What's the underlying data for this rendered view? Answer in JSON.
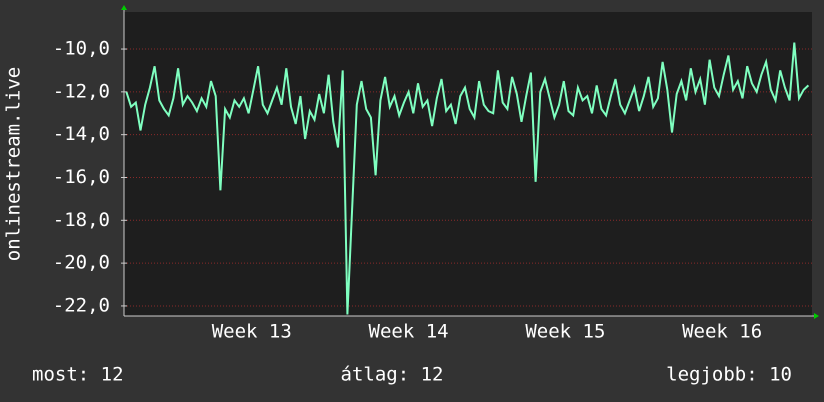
{
  "chart_data": {
    "type": "line",
    "y_label": "onlinestream.live",
    "x": [
      12.2,
      12.23,
      12.26,
      12.29,
      12.32,
      12.35,
      12.38,
      12.41,
      12.44,
      12.47,
      12.5,
      12.53,
      12.56,
      12.59,
      12.62,
      12.65,
      12.68,
      12.71,
      12.74,
      12.77,
      12.8,
      12.83,
      12.86,
      12.89,
      12.92,
      12.95,
      12.98,
      13.01,
      13.04,
      13.07,
      13.1,
      13.13,
      13.16,
      13.19,
      13.22,
      13.25,
      13.28,
      13.31,
      13.34,
      13.37,
      13.4,
      13.43,
      13.46,
      13.49,
      13.52,
      13.55,
      13.58,
      13.61,
      13.64,
      13.67,
      13.7,
      13.73,
      13.76,
      13.79,
      13.82,
      13.85,
      13.88,
      13.91,
      13.94,
      13.97,
      14.0,
      14.03,
      14.06,
      14.09,
      14.12,
      14.15,
      14.18,
      14.21,
      14.24,
      14.27,
      14.3,
      14.33,
      14.36,
      14.39,
      14.42,
      14.45,
      14.48,
      14.51,
      14.54,
      14.57,
      14.6,
      14.63,
      14.66,
      14.69,
      14.72,
      14.75,
      14.78,
      14.81,
      14.84,
      14.87,
      14.9,
      14.93,
      14.96,
      14.99,
      15.02,
      15.05,
      15.08,
      15.11,
      15.14,
      15.17,
      15.2,
      15.23,
      15.26,
      15.29,
      15.32,
      15.35,
      15.38,
      15.41,
      15.44,
      15.47,
      15.5,
      15.53,
      15.56,
      15.59,
      15.62,
      15.65,
      15.68,
      15.71,
      15.74,
      15.77,
      15.8,
      15.83,
      15.86,
      15.89,
      15.92,
      15.95,
      15.98,
      16.01,
      16.04,
      16.07,
      16.1,
      16.13,
      16.16,
      16.19,
      16.22,
      16.25,
      16.28,
      16.31,
      16.34,
      16.37,
      16.4,
      16.43,
      16.46,
      16.49,
      16.52,
      16.55
    ],
    "series": [
      {
        "color": "#7fffc0",
        "values": [
          -12.0,
          -12.7,
          -12.5,
          -13.8,
          -12.6,
          -11.8,
          -10.8,
          -12.4,
          -12.8,
          -13.1,
          -12.3,
          -10.9,
          -12.6,
          -12.2,
          -12.5,
          -12.9,
          -12.3,
          -12.7,
          -11.5,
          -12.2,
          -16.6,
          -12.8,
          -13.2,
          -12.4,
          -12.7,
          -12.3,
          -13.0,
          -11.9,
          -10.8,
          -12.6,
          -13.0,
          -12.4,
          -11.8,
          -12.6,
          -10.9,
          -12.7,
          -13.5,
          -12.2,
          -14.2,
          -12.9,
          -13.3,
          -12.1,
          -13.0,
          -11.2,
          -13.4,
          -14.6,
          -11.0,
          -22.4,
          -17.5,
          -12.6,
          -11.5,
          -12.8,
          -13.2,
          -15.9,
          -12.4,
          -11.3,
          -12.7,
          -12.2,
          -13.1,
          -12.5,
          -12.0,
          -13.0,
          -11.6,
          -12.7,
          -12.4,
          -13.6,
          -12.3,
          -11.4,
          -12.9,
          -12.6,
          -13.5,
          -12.2,
          -11.8,
          -12.8,
          -13.2,
          -11.5,
          -12.6,
          -12.9,
          -13.0,
          -11.0,
          -12.5,
          -12.8,
          -11.3,
          -12.1,
          -13.4,
          -12.2,
          -11.1,
          -16.2,
          -12.0,
          -11.4,
          -12.3,
          -13.2,
          -12.6,
          -11.5,
          -12.9,
          -13.1,
          -11.8,
          -12.4,
          -12.2,
          -13.0,
          -11.7,
          -12.8,
          -13.1,
          -12.2,
          -11.4,
          -12.6,
          -13.0,
          -12.4,
          -11.8,
          -12.9,
          -12.2,
          -11.3,
          -12.7,
          -12.3,
          -10.6,
          -11.9,
          -13.9,
          -12.1,
          -11.5,
          -12.4,
          -10.9,
          -12.0,
          -11.4,
          -12.6,
          -10.5,
          -11.8,
          -12.2,
          -11.2,
          -10.3,
          -11.9,
          -11.5,
          -12.3,
          -10.8,
          -11.6,
          -12.0,
          -11.2,
          -10.6,
          -11.9,
          -12.4,
          -11.0,
          -11.8,
          -12.4,
          -9.7,
          -12.3,
          -11.9,
          -11.7
        ]
      }
    ],
    "xlim": [
      12.185,
      16.573
    ],
    "xticks": [
      {
        "value": 13,
        "label": "Week 13"
      },
      {
        "value": 14,
        "label": "Week 14"
      },
      {
        "value": 15,
        "label": "Week 15"
      },
      {
        "value": 16,
        "label": "Week 16"
      }
    ],
    "ylim": [
      -22.47,
      -8.27
    ],
    "yticks": [
      {
        "value": -10,
        "label": "-10,0"
      },
      {
        "value": -12,
        "label": "-12,0"
      },
      {
        "value": -14,
        "label": "-14,0"
      },
      {
        "value": -16,
        "label": "-16,0"
      },
      {
        "value": -18,
        "label": "-18,0"
      },
      {
        "value": -20,
        "label": "-20,0"
      },
      {
        "value": -22,
        "label": "-22,0"
      }
    ],
    "grid": true,
    "footer": [
      "most: 12",
      "átlag: 12",
      "legjobb: 10"
    ]
  }
}
